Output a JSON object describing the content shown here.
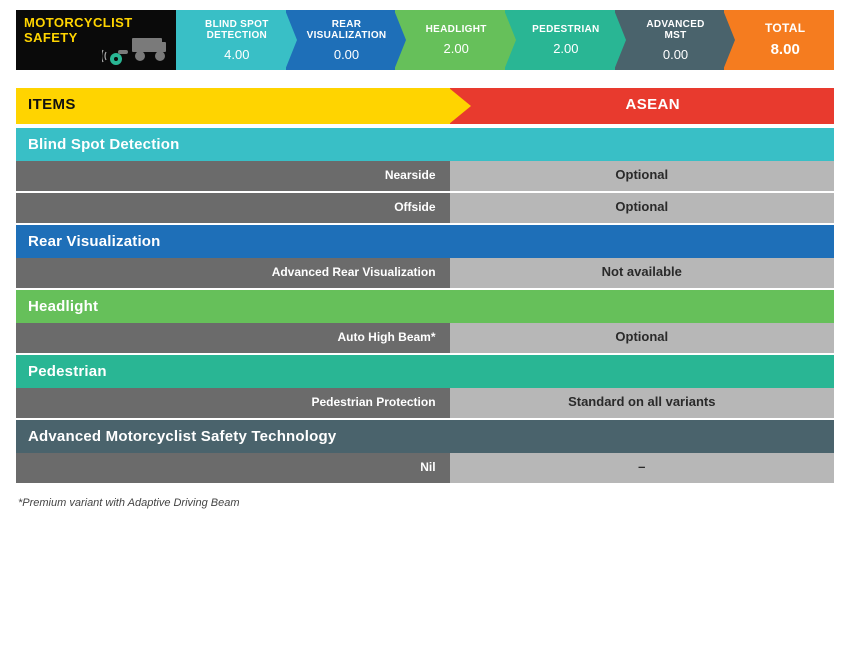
{
  "topbar": {
    "title_line1": "MOTORCYCLIST",
    "title_line2": "SAFETY",
    "title_bg": "#0a0a0a",
    "title_color": "#ffd400",
    "segments": [
      {
        "label1": "BLIND SPOT",
        "label2": "DETECTION",
        "value": "4.00",
        "bg": "#39bfc6"
      },
      {
        "label1": "REAR",
        "label2": "VISUALIZATION",
        "value": "0.00",
        "bg": "#1e6fb8"
      },
      {
        "label1": "HEADLIGHT",
        "label2": "",
        "value": "2.00",
        "bg": "#66c05a"
      },
      {
        "label1": "PEDESTRIAN",
        "label2": "",
        "value": "2.00",
        "bg": "#29b694"
      },
      {
        "label1": "ADVANCED",
        "label2": "MST",
        "value": "0.00",
        "bg": "#4a636c"
      },
      {
        "label1": "TOTAL",
        "label2": "",
        "value": "8.00",
        "bg": "#f57c1f"
      }
    ]
  },
  "items_header": {
    "left": "ITEMS",
    "right": "ASEAN",
    "left_bg": "#ffd400",
    "right_bg": "#e83a2e"
  },
  "sections": [
    {
      "title": "Blind Spot Detection",
      "bg": "#39bfc6",
      "rows": [
        {
          "label": "Nearside",
          "value": "Optional"
        },
        {
          "label": "Offside",
          "value": "Optional"
        }
      ]
    },
    {
      "title": "Rear Visualization",
      "bg": "#1e6fb8",
      "rows": [
        {
          "label": "Advanced Rear Visualization",
          "value": "Not available"
        }
      ]
    },
    {
      "title": "Headlight",
      "bg": "#66c05a",
      "rows": [
        {
          "label": "Auto High Beam*",
          "value": "Optional"
        }
      ]
    },
    {
      "title": "Pedestrian",
      "bg": "#29b694",
      "rows": [
        {
          "label": "Pedestrian Protection",
          "value": "Standard on all variants"
        }
      ]
    },
    {
      "title": "Advanced Motorcyclist Safety Technology",
      "bg": "#4a636c",
      "rows": [
        {
          "label": "Nil",
          "value": "–"
        }
      ]
    }
  ],
  "footnote": "*Premium variant with Adaptive Driving Beam",
  "row_colors": {
    "label_bg": "#6b6b6b",
    "value_bg": "#b7b7b7"
  }
}
